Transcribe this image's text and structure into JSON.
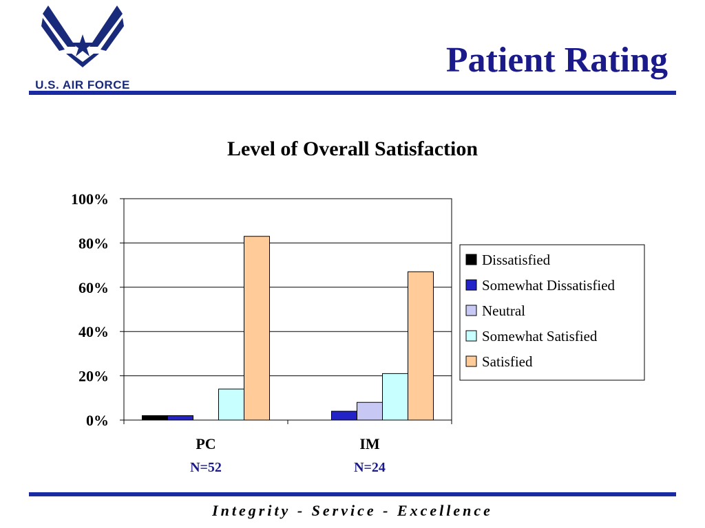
{
  "header": {
    "logo_text": "U.S. AIR FORCE",
    "page_title": "Patient Rating"
  },
  "footer": {
    "motto": "Integrity - Service - Excellence"
  },
  "colors": {
    "rule": "#1a2aa0",
    "title": "#1a1a8a"
  },
  "chart_data": {
    "type": "bar",
    "title": "Level of Overall Satisfaction",
    "categories": [
      "PC",
      "IM"
    ],
    "category_sublabels": [
      "N=52",
      "N=24"
    ],
    "ylim": [
      0,
      100
    ],
    "yticks": [
      "0%",
      "20%",
      "40%",
      "60%",
      "80%",
      "100%"
    ],
    "grid": true,
    "legend_position": "right",
    "series": [
      {
        "name": "Dissatisfied",
        "color": "#000000",
        "values": [
          2,
          0
        ]
      },
      {
        "name": "Somewhat Dissatisfied",
        "color": "#2323c8",
        "values": [
          2,
          4
        ]
      },
      {
        "name": "Neutral",
        "color": "#c8c8f5",
        "values": [
          0,
          8
        ]
      },
      {
        "name": "Somewhat Satisfied",
        "color": "#c8ffff",
        "values": [
          14,
          21
        ]
      },
      {
        "name": "Satisfied",
        "color": "#ffcc99",
        "values": [
          83,
          67
        ]
      }
    ]
  }
}
